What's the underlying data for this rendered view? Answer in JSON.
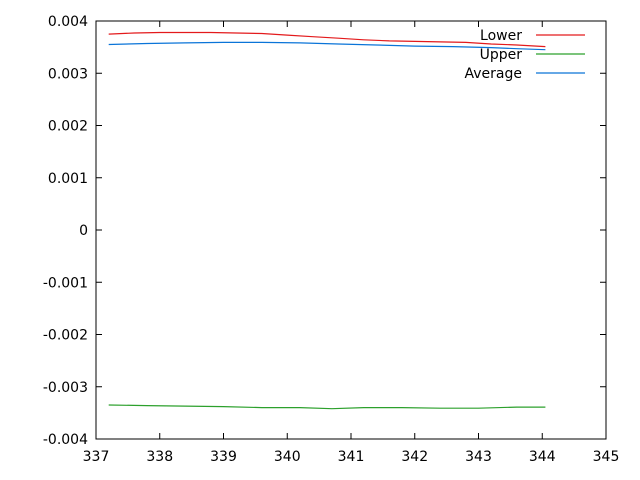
{
  "chart_data": {
    "type": "line",
    "title": "",
    "xlabel": "",
    "ylabel": "",
    "xlim": [
      337,
      345
    ],
    "ylim": [
      -0.004,
      0.004
    ],
    "x_ticks": [
      "337",
      "338",
      "339",
      "340",
      "341",
      "342",
      "343",
      "344",
      "345"
    ],
    "y_ticks": [
      "0.004",
      "0.003",
      "0.002",
      "0.001",
      "0",
      "-0.001",
      "-0.002",
      "-0.003",
      "-0.004"
    ],
    "legend_position": "top-right",
    "grid": false,
    "series": [
      {
        "name": "Lower",
        "color": "#e31a1c",
        "points": [
          [
            337.2,
            0.00375
          ],
          [
            337.6,
            0.00377
          ],
          [
            338.0,
            0.00378
          ],
          [
            338.4,
            0.00378
          ],
          [
            338.8,
            0.00378
          ],
          [
            339.2,
            0.00377
          ],
          [
            339.6,
            0.00376
          ],
          [
            340.0,
            0.00373
          ],
          [
            340.4,
            0.0037
          ],
          [
            340.8,
            0.00367
          ],
          [
            341.2,
            0.00364
          ],
          [
            341.6,
            0.00362
          ],
          [
            342.0,
            0.00361
          ],
          [
            342.4,
            0.0036
          ],
          [
            342.8,
            0.00359
          ],
          [
            343.2,
            0.00356
          ],
          [
            343.6,
            0.00354
          ],
          [
            344.05,
            0.00351
          ]
        ]
      },
      {
        "name": "Upper",
        "color": "#2ca02c",
        "points": [
          [
            337.2,
            -0.00335
          ],
          [
            337.8,
            -0.00336
          ],
          [
            338.4,
            -0.00337
          ],
          [
            339.0,
            -0.00338
          ],
          [
            339.6,
            -0.0034
          ],
          [
            340.2,
            -0.0034
          ],
          [
            340.7,
            -0.00342
          ],
          [
            341.2,
            -0.0034
          ],
          [
            341.8,
            -0.0034
          ],
          [
            342.4,
            -0.00341
          ],
          [
            343.0,
            -0.00341
          ],
          [
            343.6,
            -0.00339
          ],
          [
            344.05,
            -0.00339
          ]
        ]
      },
      {
        "name": "Average",
        "color": "#0a74d8",
        "points": [
          [
            337.2,
            0.00355
          ],
          [
            337.8,
            0.00357
          ],
          [
            338.4,
            0.00358
          ],
          [
            339.0,
            0.00359
          ],
          [
            339.6,
            0.00359
          ],
          [
            340.2,
            0.00358
          ],
          [
            340.8,
            0.00356
          ],
          [
            341.4,
            0.00354
          ],
          [
            342.0,
            0.00352
          ],
          [
            342.6,
            0.00351
          ],
          [
            343.2,
            0.00349
          ],
          [
            343.6,
            0.00347
          ],
          [
            344.05,
            0.00345
          ]
        ]
      }
    ]
  }
}
